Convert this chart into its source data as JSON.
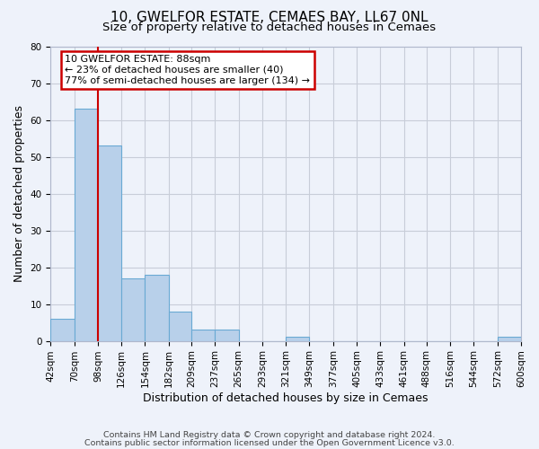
{
  "title": "10, GWELFOR ESTATE, CEMAES BAY, LL67 0NL",
  "subtitle": "Size of property relative to detached houses in Cemaes",
  "xlabel": "Distribution of detached houses by size in Cemaes",
  "ylabel": "Number of detached properties",
  "bin_labels": [
    "42sqm",
    "70sqm",
    "98sqm",
    "126sqm",
    "154sqm",
    "182sqm",
    "209sqm",
    "237sqm",
    "265sqm",
    "293sqm",
    "321sqm",
    "349sqm",
    "377sqm",
    "405sqm",
    "433sqm",
    "461sqm",
    "488sqm",
    "516sqm",
    "544sqm",
    "572sqm",
    "600sqm"
  ],
  "bar_values": [
    6,
    63,
    53,
    17,
    18,
    8,
    3,
    3,
    0,
    0,
    1,
    0,
    0,
    0,
    0,
    0,
    0,
    0,
    0,
    1,
    0
  ],
  "bar_color": "#b8d0ea",
  "bar_edge_color": "#6aaad4",
  "background_color": "#eef2fa",
  "grid_color": "#c8cdd8",
  "plot_bg_color": "#eef2fa",
  "vline_x": 98,
  "ylim": [
    0,
    80
  ],
  "yticks": [
    0,
    10,
    20,
    30,
    40,
    50,
    60,
    70,
    80
  ],
  "annotation_box_text": "10 GWELFOR ESTATE: 88sqm\n← 23% of detached houses are smaller (40)\n77% of semi-detached houses are larger (134) →",
  "annotation_box_color": "#ffffff",
  "annotation_box_edge_color": "#cc0000",
  "footer_line1": "Contains HM Land Registry data © Crown copyright and database right 2024.",
  "footer_line2": "Contains public sector information licensed under the Open Government Licence v3.0.",
  "title_fontsize": 11,
  "subtitle_fontsize": 9.5,
  "xlabel_fontsize": 9,
  "ylabel_fontsize": 9,
  "tick_fontsize": 7.5,
  "footer_fontsize": 6.8
}
